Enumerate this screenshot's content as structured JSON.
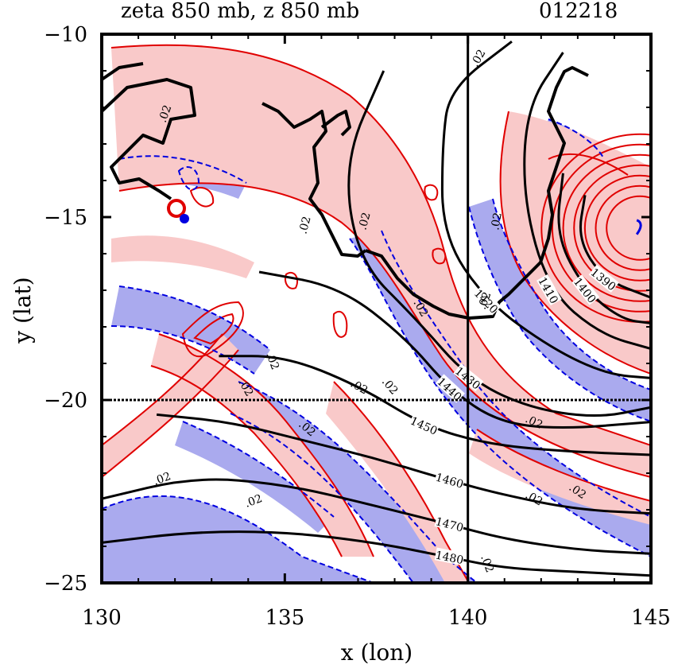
{
  "chart_data": {
    "type": "contour",
    "title_left": "zeta 850 mb, z 850 mb",
    "title_right": "012218",
    "xlabel": "x (lon)",
    "ylabel": "y (lat)",
    "xlim": [
      130,
      145
    ],
    "ylim": [
      -25,
      -10
    ],
    "xticks": [
      130,
      135,
      140,
      145
    ],
    "yticks": [
      -10,
      -15,
      -20,
      -25
    ],
    "xtick_labels": [
      "130",
      "135",
      "140",
      "145"
    ],
    "ytick_labels": [
      "−10",
      "−15",
      "−20",
      "−25"
    ],
    "reference_lines": {
      "lon": 140,
      "lat": -20
    },
    "colors": {
      "positive_fill": "#f9c9c9",
      "negative_fill": "#aaaaee",
      "positive_contour": "#e00000",
      "negative_contour": "#0000e0",
      "height_contour": "#000000",
      "coastline": "#000000"
    },
    "height_contours": [
      {
        "label": "1480",
        "points": [
          [
            130,
            -23.9
          ],
          [
            132.5,
            -23.6
          ],
          [
            135,
            -23.6
          ],
          [
            137.5,
            -23.9
          ],
          [
            139.5,
            -24.3
          ],
          [
            141,
            -24.6
          ],
          [
            143,
            -24.7
          ],
          [
            145,
            -24.8
          ]
        ]
      },
      {
        "label": "1470",
        "points": [
          [
            130,
            -22.7
          ],
          [
            132.5,
            -22.1
          ],
          [
            135,
            -22.3
          ],
          [
            137.5,
            -22.9
          ],
          [
            139.5,
            -23.4
          ],
          [
            141,
            -23.8
          ],
          [
            143,
            -24.1
          ],
          [
            145,
            -24.2
          ]
        ]
      },
      {
        "label": "1460",
        "points": [
          [
            131.5,
            -20.4
          ],
          [
            133.5,
            -20.6
          ],
          [
            135.5,
            -21.1
          ],
          [
            137.5,
            -21.6
          ],
          [
            139.5,
            -22.2
          ],
          [
            141,
            -22.6
          ],
          [
            143,
            -23.0
          ],
          [
            145,
            -23.1
          ]
        ]
      },
      {
        "label": "1450",
        "points": [
          [
            133.2,
            -18.8
          ],
          [
            135,
            -18.8
          ],
          [
            137,
            -19.6
          ],
          [
            138.8,
            -20.7
          ],
          [
            140.5,
            -21.2
          ],
          [
            142.5,
            -21.4
          ],
          [
            145,
            -21.5
          ]
        ]
      },
      {
        "label": "1440",
        "points": [
          [
            134.3,
            -16.5
          ],
          [
            136.5,
            -16.9
          ],
          [
            138.3,
            -18.3
          ],
          [
            139.5,
            -19.7
          ],
          [
            140.8,
            -20.6
          ],
          [
            142.5,
            -20.8
          ],
          [
            145,
            -20.6
          ]
        ]
      },
      {
        "label": "1430",
        "points": [
          [
            137.7,
            -11.0
          ],
          [
            136.6,
            -13.5
          ],
          [
            137.0,
            -16.2
          ],
          [
            138.6,
            -17.8
          ],
          [
            140.0,
            -19.4
          ],
          [
            141.6,
            -20.2
          ],
          [
            143.5,
            -20.5
          ],
          [
            145,
            -20.2
          ]
        ]
      },
      {
        "label": "1420",
        "points": [
          [
            141.2,
            -10.2
          ],
          [
            139.5,
            -11.5
          ],
          [
            139.3,
            -13.0
          ],
          [
            139.3,
            -15.5
          ],
          [
            140.5,
            -17.3
          ],
          [
            142.3,
            -18.6
          ],
          [
            143.8,
            -19.3
          ],
          [
            145,
            -19.4
          ]
        ]
      },
      {
        "label": "1410",
        "points": [
          [
            142.6,
            -10.5
          ],
          [
            141.6,
            -12.0
          ],
          [
            141.5,
            -14.5
          ],
          [
            142.2,
            -17.0
          ],
          [
            143.6,
            -18.2
          ],
          [
            145,
            -18.6
          ]
        ]
      },
      {
        "label": "1400",
        "points": [
          [
            142.6,
            -13.8
          ],
          [
            142.4,
            -15.5
          ],
          [
            143.2,
            -17.0
          ],
          [
            144.2,
            -17.8
          ],
          [
            145,
            -17.9
          ]
        ]
      },
      {
        "label": "1390",
        "points": [
          [
            143.2,
            -14.4
          ],
          [
            143.0,
            -15.6
          ],
          [
            143.7,
            -16.7
          ],
          [
            145,
            -17.2
          ]
        ]
      }
    ],
    "zeta_contour_label": ".02"
  }
}
